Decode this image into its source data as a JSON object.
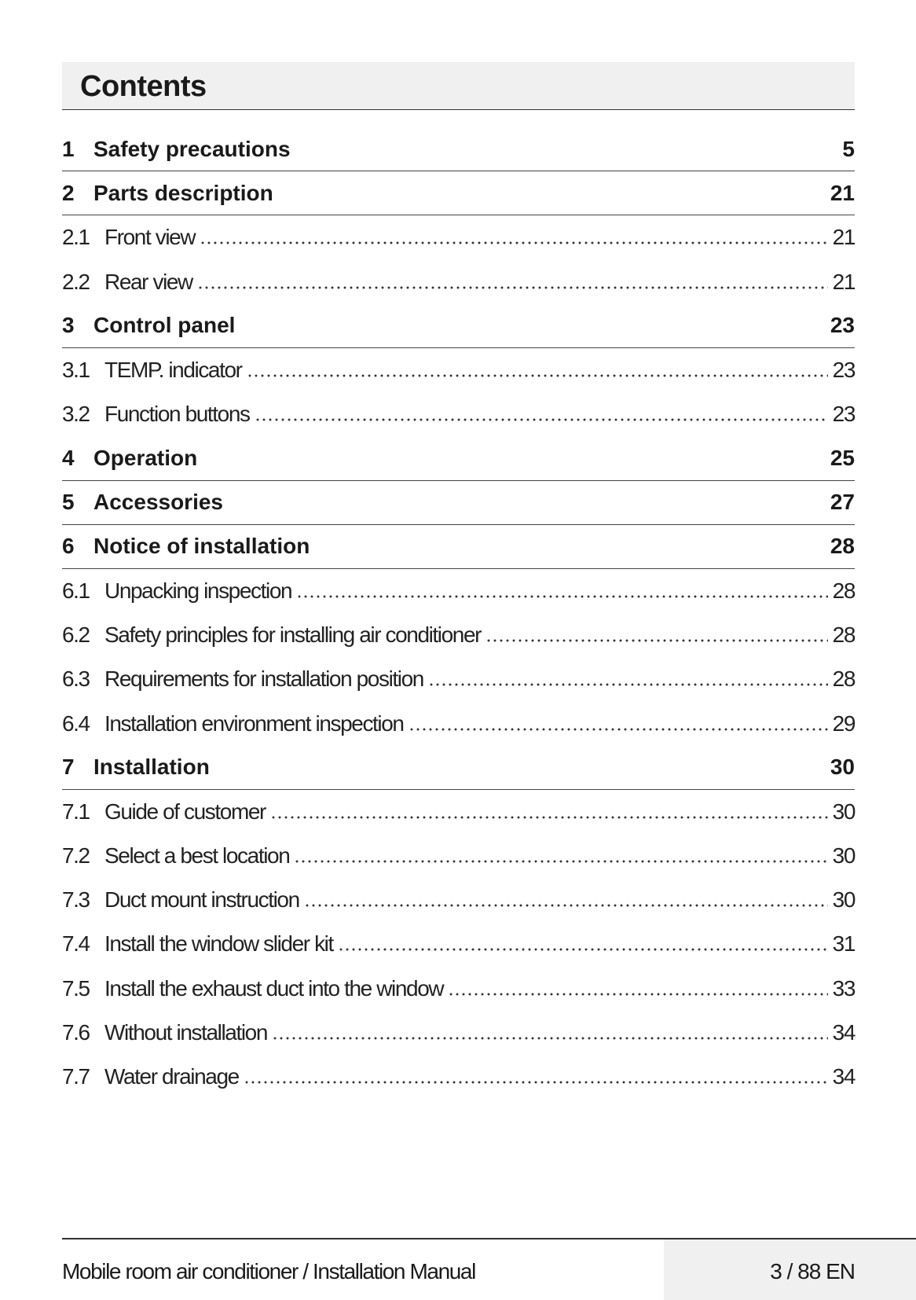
{
  "header": {
    "title": "Contents"
  },
  "entries": [
    {
      "number": "1",
      "title": "Safety precautions",
      "page": "5",
      "level": 1
    },
    {
      "number": "2",
      "title": "Parts description",
      "page": "21",
      "level": 1
    },
    {
      "number": "2.1",
      "title": "Front view",
      "page": "21",
      "level": 2
    },
    {
      "number": "2.2",
      "title": "Rear view",
      "page": "21",
      "level": 2
    },
    {
      "number": "3",
      "title": "Control panel",
      "page": "23",
      "level": 1
    },
    {
      "number": "3.1",
      "title": "TEMP. indicator",
      "page": "23",
      "level": 2
    },
    {
      "number": "3.2",
      "title": "Function buttons",
      "page": "23",
      "level": 2
    },
    {
      "number": "4",
      "title": "Operation",
      "page": "25",
      "level": 1
    },
    {
      "number": "5",
      "title": "Accessories",
      "page": "27",
      "level": 1
    },
    {
      "number": "6",
      "title": "Notice of installation",
      "page": "28",
      "level": 1
    },
    {
      "number": "6.1",
      "title": "Unpacking inspection",
      "page": "28",
      "level": 2
    },
    {
      "number": "6.2",
      "title": "Safety principles for installing air conditioner",
      "page": "28",
      "level": 2
    },
    {
      "number": "6.3",
      "title": "Requirements for installation position",
      "page": "28",
      "level": 2
    },
    {
      "number": "6.4",
      "title": "Installation environment inspection",
      "page": "29",
      "level": 2
    },
    {
      "number": "7",
      "title": "Installation",
      "page": "30",
      "level": 1
    },
    {
      "number": "7.1",
      "title": "Guide of customer",
      "page": "30",
      "level": 2
    },
    {
      "number": "7.2",
      "title": "Select a best location",
      "page": "30",
      "level": 2
    },
    {
      "number": "7.3",
      "title": "Duct mount instruction",
      "page": "30",
      "level": 2
    },
    {
      "number": "7.4",
      "title": "Install the window slider kit",
      "page": "31",
      "level": 2
    },
    {
      "number": "7.5",
      "title": "Install the exhaust duct into the window",
      "page": "33",
      "level": 2
    },
    {
      "number": "7.6",
      "title": "Without installation",
      "page": "34",
      "level": 2
    },
    {
      "number": "7.7",
      "title": "Water drainage",
      "page": "34",
      "level": 2
    }
  ],
  "footer": {
    "title": "Mobile room air conditioner / Installation Manual",
    "page": "3 / 88 EN"
  }
}
